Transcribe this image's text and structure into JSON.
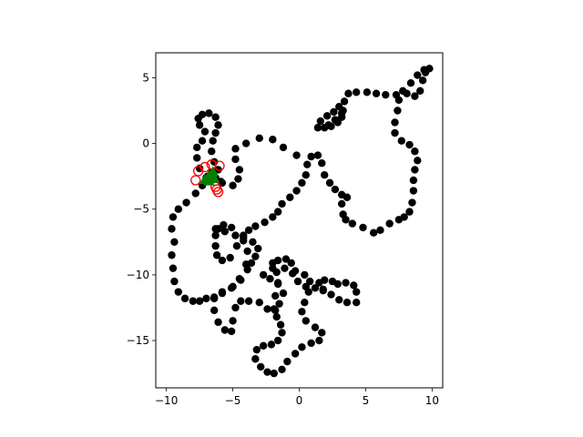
{
  "chart_data": {
    "type": "scatter",
    "title": "",
    "xlabel": "",
    "ylabel": "",
    "xlim": [
      -10.8,
      10.8
    ],
    "ylim": [
      -18.6,
      6.9
    ],
    "grid": false,
    "legend": "none",
    "x_ticks": [
      -10,
      -5,
      0,
      5,
      10
    ],
    "y_ticks": [
      5,
      0,
      -5,
      -10,
      -15
    ],
    "x_tick_labels": [
      "−10",
      "−5",
      "0",
      "5",
      "10"
    ],
    "y_tick_labels": [
      "5",
      "0",
      "−5",
      "−10",
      "−15"
    ],
    "colors": {
      "trajectory": "#000000",
      "current": "#ff0000",
      "start": "#008000",
      "axes": "#000000"
    },
    "series": [
      {
        "marker": "filled-circle",
        "color": "#000000",
        "points": [
          [
            -0.2,
            -0.9
          ],
          [
            -1.2,
            -0.3
          ],
          [
            -2,
            0.3
          ],
          [
            -3,
            0.4
          ],
          [
            -4,
            0
          ],
          [
            -4.8,
            -0.4
          ],
          [
            -4.8,
            -1.2
          ],
          [
            -4.5,
            -2
          ],
          [
            -4.6,
            -2.7
          ],
          [
            -5,
            -3.2
          ],
          [
            -5.8,
            -3
          ],
          [
            -6.3,
            -2.6
          ],
          [
            -6.6,
            -2.2
          ],
          [
            -6.9,
            -2.5
          ],
          [
            -7.3,
            -3.2
          ],
          [
            -7.8,
            -3.8
          ],
          [
            -8.5,
            -4.5
          ],
          [
            -9.1,
            -5
          ],
          [
            -9.5,
            -5.6
          ],
          [
            -9.6,
            -6.5
          ],
          [
            -9.4,
            -7.5
          ],
          [
            -9.6,
            -8.5
          ],
          [
            -9.5,
            -9.5
          ],
          [
            -9.4,
            -10.5
          ],
          [
            -9.1,
            -11.3
          ],
          [
            -8.6,
            -11.8
          ],
          [
            -8,
            -12
          ],
          [
            -7.5,
            -12
          ],
          [
            -7,
            -11.8
          ],
          [
            -6.4,
            -11.7
          ],
          [
            -5.8,
            -11.3
          ],
          [
            -5.1,
            -11
          ],
          [
            -4.5,
            -10.3
          ],
          [
            -4,
            -9.2
          ],
          [
            -3.9,
            -8.2
          ],
          [
            -4.2,
            -7.4
          ],
          [
            -4.8,
            -7
          ],
          [
            -5.6,
            -6.7
          ],
          [
            -6.1,
            -6.5
          ],
          [
            -6.3,
            -7
          ],
          [
            -6.3,
            -7.8
          ],
          [
            -6.2,
            -8.5
          ],
          [
            -5.8,
            -8.9
          ],
          [
            -5.2,
            -8.7
          ],
          [
            -4.7,
            -7.8
          ],
          [
            -4.2,
            -7.2
          ],
          [
            -3.8,
            -6.6
          ],
          [
            -3.3,
            -6.3
          ],
          [
            -2.6,
            -6
          ],
          [
            -2,
            -5.6
          ],
          [
            -1.6,
            -5.2
          ],
          [
            -1.3,
            -4.6
          ],
          [
            -0.7,
            -4.1
          ],
          [
            -0.2,
            -3.6
          ],
          [
            0.2,
            -3
          ],
          [
            0.5,
            -2.4
          ],
          [
            0.6,
            -1.6
          ],
          [
            0.9,
            -1
          ],
          [
            1.4,
            -0.9
          ],
          [
            1.7,
            -1.5
          ],
          [
            1.9,
            -2.4
          ],
          [
            2.3,
            -3
          ],
          [
            2.7,
            -3.5
          ],
          [
            3.2,
            -3.9
          ],
          [
            3.6,
            -4.1
          ],
          [
            3.2,
            -4.6
          ],
          [
            3.3,
            -5.4
          ],
          [
            3.5,
            -5.8
          ],
          [
            4,
            -6.1
          ],
          [
            4.8,
            -6.4
          ],
          [
            5.6,
            -6.8
          ],
          [
            6.1,
            -6.6
          ],
          [
            6.8,
            -6.1
          ],
          [
            7.5,
            -5.8
          ],
          [
            7.9,
            -5.6
          ],
          [
            8.3,
            -5.2
          ],
          [
            8.5,
            -4.5
          ],
          [
            8.6,
            -3.6
          ],
          [
            8.6,
            -2.8
          ],
          [
            8.7,
            -2
          ],
          [
            8.9,
            -1.3
          ],
          [
            8.7,
            -0.6
          ],
          [
            8.3,
            -0.1
          ],
          [
            7.7,
            0.2
          ],
          [
            7.2,
            0.8
          ],
          [
            7.2,
            1.6
          ],
          [
            7.4,
            2.5
          ],
          [
            7.5,
            3.3
          ],
          [
            7.8,
            4
          ],
          [
            8.4,
            4.6
          ],
          [
            8.9,
            5.2
          ],
          [
            9.5,
            5.4
          ],
          [
            9.8,
            5.7
          ],
          [
            9.4,
            5.6
          ],
          [
            9.3,
            4.8
          ],
          [
            9.1,
            4
          ],
          [
            8.7,
            3.6
          ],
          [
            8.1,
            3.8
          ],
          [
            7.3,
            3.7
          ],
          [
            6.5,
            3.7
          ],
          [
            5.8,
            3.8
          ],
          [
            5.1,
            3.9
          ],
          [
            4.3,
            3.9
          ],
          [
            3.7,
            3.8
          ],
          [
            3.4,
            3.2
          ],
          [
            3.3,
            2.5
          ],
          [
            3.2,
            2
          ],
          [
            2.9,
            1.6
          ],
          [
            2.4,
            1.3
          ],
          [
            1.9,
            1.2
          ],
          [
            1.4,
            1.2
          ],
          [
            1.6,
            1.7
          ],
          [
            2.1,
            2.1
          ],
          [
            2.6,
            2.4
          ],
          [
            3,
            2.8
          ],
          [
            3.2,
            2.3
          ],
          [
            2.7,
            1.8
          ],
          [
            2.2,
            1.4
          ],
          [
            -6.3,
            -6.5
          ],
          [
            -5.7,
            -6.2
          ],
          [
            -5.1,
            -6.4
          ],
          [
            -4.2,
            -7
          ],
          [
            -3.5,
            -7.5
          ],
          [
            -3.1,
            -8
          ],
          [
            -3.3,
            -8.6
          ],
          [
            -3.6,
            -9.1
          ],
          [
            -3.9,
            -9.6
          ],
          [
            -4.4,
            -10.4
          ],
          [
            -5,
            -10.9
          ],
          [
            -5.8,
            -11.4
          ],
          [
            -6.4,
            -11.8
          ],
          [
            -6.4,
            -12.7
          ],
          [
            -6.1,
            -13.6
          ],
          [
            -5.6,
            -14.2
          ],
          [
            -5.1,
            -14.3
          ],
          [
            -5,
            -13.5
          ],
          [
            -4.8,
            -12.5
          ],
          [
            -4.4,
            -12
          ],
          [
            -3.8,
            -12
          ],
          [
            -3,
            -12.1
          ],
          [
            -2.4,
            -12.6
          ],
          [
            -1.8,
            -12.7
          ],
          [
            -1.5,
            -12.2
          ],
          [
            -1.2,
            -11.4
          ],
          [
            -1.6,
            -10.7
          ],
          [
            -2.2,
            -10.3
          ],
          [
            -2.7,
            -10
          ],
          [
            -2,
            -9.5
          ],
          [
            -1.1,
            -9.5
          ],
          [
            -0.3,
            -9.7
          ],
          [
            0.4,
            -10
          ],
          [
            0.8,
            -10.5
          ],
          [
            0.7,
            -11.3
          ],
          [
            0.4,
            -12.1
          ],
          [
            0.2,
            -12.8
          ],
          [
            0.5,
            -13.5
          ],
          [
            1.2,
            -14
          ],
          [
            1.7,
            -14.4
          ],
          [
            1.5,
            -15
          ],
          [
            0.9,
            -15.2
          ],
          [
            0.2,
            -15.5
          ],
          [
            -0.3,
            -16
          ],
          [
            -0.9,
            -16.6
          ],
          [
            -1.3,
            -17.2
          ],
          [
            -1.9,
            -17.5
          ],
          [
            -2.4,
            -17.4
          ],
          [
            -2.9,
            -17
          ],
          [
            -3.3,
            -16.4
          ],
          [
            -3.2,
            -15.7
          ],
          [
            -2.7,
            -15.4
          ],
          [
            -2.1,
            -15.3
          ],
          [
            -1.6,
            -15
          ],
          [
            -1.3,
            -14.4
          ],
          [
            -1.4,
            -13.8
          ],
          [
            -1.7,
            -13.2
          ],
          [
            -1.9,
            -12.6
          ],
          [
            -1.8,
            -11.6
          ],
          [
            -1.6,
            -10.6
          ],
          [
            -1.7,
            -9.8
          ],
          [
            -2,
            -9.1
          ],
          [
            -1.6,
            -8.9
          ],
          [
            -1,
            -8.8
          ],
          [
            -0.6,
            -9.1
          ],
          [
            -0.5,
            -9.9
          ],
          [
            -0.1,
            -10.5
          ],
          [
            0.5,
            -10.9
          ],
          [
            1.2,
            -11
          ],
          [
            1.8,
            -11.2
          ],
          [
            2.4,
            -11.5
          ],
          [
            3,
            -11.9
          ],
          [
            3.6,
            -12.1
          ],
          [
            4.3,
            -12.1
          ],
          [
            4.3,
            -11.3
          ],
          [
            4.1,
            -10.8
          ],
          [
            3.5,
            -10.6
          ],
          [
            2.9,
            -10.7
          ],
          [
            2.5,
            -10.5
          ],
          [
            1.9,
            -10.4
          ],
          [
            1.5,
            -10.6
          ],
          [
            1.8,
            -11.1
          ],
          [
            -5.9,
            -2.9
          ],
          [
            -6.5,
            -2.6
          ],
          [
            -7,
            -2.6
          ],
          [
            -7.5,
            -1.9
          ],
          [
            -7.7,
            -1.1
          ],
          [
            -7.7,
            -0.3
          ],
          [
            -7.3,
            0.2
          ],
          [
            -7.1,
            0.9
          ],
          [
            -7.5,
            1.4
          ],
          [
            -7.6,
            1.9
          ],
          [
            -7.3,
            2.2
          ],
          [
            -6.8,
            2.3
          ],
          [
            -6.3,
            2
          ],
          [
            -6.1,
            1.4
          ],
          [
            -6.3,
            0.8
          ],
          [
            -6.5,
            0.2
          ],
          [
            -6.6,
            -0.6
          ],
          [
            -6.4,
            -1.4
          ],
          [
            -6.1,
            -2
          ]
        ]
      },
      {
        "marker": "circle",
        "color": "#ff0000",
        "points": [
          [
            -7.8,
            -2.8
          ],
          [
            -7.6,
            -2.1
          ],
          [
            -7.1,
            -1.8
          ],
          [
            -6.6,
            -1.6
          ],
          [
            -6,
            -1.7
          ],
          [
            -6.2,
            -3.5
          ],
          [
            -6.1,
            -3.7
          ],
          [
            -6.3,
            -3.3
          ]
        ]
      },
      {
        "marker": "triangle",
        "color": "#008000",
        "points": [
          [
            -7.1,
            -2.8
          ],
          [
            -6.8,
            -2.5
          ],
          [
            -6.5,
            -2.2
          ],
          [
            -6.8,
            -2.9
          ],
          [
            -6.4,
            -2.7
          ]
        ]
      }
    ]
  }
}
